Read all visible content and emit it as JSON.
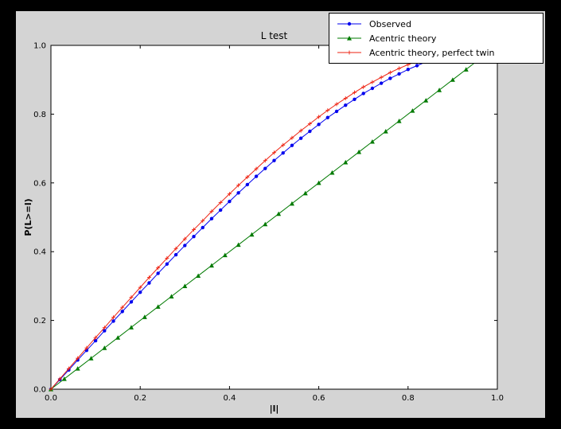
{
  "figure": {
    "outer_bg": "#000000",
    "face": "#d4d4d4",
    "axes_bg": "#ffffff",
    "border": "#000000"
  },
  "chart_data": {
    "type": "line",
    "title": "L test",
    "xlabel": "|l|",
    "ylabel": "P(L>=l)",
    "xlim": [
      0.0,
      1.0
    ],
    "ylim": [
      0.0,
      1.0
    ],
    "xticks": [
      "0.0",
      "0.2",
      "0.4",
      "0.6",
      "0.8",
      "1.0"
    ],
    "yticks": [
      "0.0",
      "0.2",
      "0.4",
      "0.6",
      "0.8",
      "1.0"
    ],
    "grid": false,
    "legend_position": "upper right",
    "series": [
      {
        "name": "Observed",
        "color": "#0000ee",
        "marker": "circle",
        "x": [
          0,
          0.02,
          0.04,
          0.06,
          0.08,
          0.1,
          0.12,
          0.14,
          0.16,
          0.18,
          0.2,
          0.22,
          0.24,
          0.26,
          0.28,
          0.3,
          0.32,
          0.34,
          0.36,
          0.38,
          0.4,
          0.42,
          0.44,
          0.46,
          0.48,
          0.5,
          0.52,
          0.54,
          0.56,
          0.58,
          0.6,
          0.62,
          0.64,
          0.66,
          0.68,
          0.7,
          0.72,
          0.74,
          0.76,
          0.78,
          0.8,
          0.82,
          0.84,
          0.86
        ],
        "y": [
          0,
          0.028,
          0.056,
          0.085,
          0.113,
          0.141,
          0.17,
          0.198,
          0.226,
          0.254,
          0.282,
          0.309,
          0.337,
          0.364,
          0.391,
          0.418,
          0.444,
          0.47,
          0.496,
          0.521,
          0.546,
          0.571,
          0.595,
          0.619,
          0.642,
          0.665,
          0.687,
          0.709,
          0.73,
          0.75,
          0.77,
          0.79,
          0.808,
          0.826,
          0.843,
          0.86,
          0.875,
          0.89,
          0.904,
          0.917,
          0.93,
          0.941,
          0.952,
          0.961
        ]
      },
      {
        "name": "Acentric theory",
        "color": "#007a00",
        "marker": "triangle",
        "x": [
          0,
          0.03,
          0.06,
          0.09,
          0.12,
          0.15,
          0.18,
          0.21,
          0.24,
          0.27,
          0.3,
          0.33,
          0.36,
          0.39,
          0.42,
          0.45,
          0.48,
          0.51,
          0.54,
          0.57,
          0.6,
          0.63,
          0.66,
          0.69,
          0.72,
          0.75,
          0.78,
          0.81,
          0.84,
          0.87,
          0.9,
          0.93,
          0.96
        ],
        "y": [
          0,
          0.03,
          0.06,
          0.09,
          0.12,
          0.15,
          0.18,
          0.21,
          0.24,
          0.27,
          0.3,
          0.33,
          0.36,
          0.39,
          0.42,
          0.45,
          0.48,
          0.51,
          0.54,
          0.57,
          0.6,
          0.63,
          0.66,
          0.69,
          0.72,
          0.75,
          0.78,
          0.81,
          0.84,
          0.87,
          0.9,
          0.93,
          0.96
        ]
      },
      {
        "name": "Acentric theory, perfect twin",
        "color": "#ee2211",
        "marker": "plus",
        "x": [
          0,
          0.02,
          0.04,
          0.06,
          0.08,
          0.1,
          0.12,
          0.14,
          0.16,
          0.18,
          0.2,
          0.22,
          0.24,
          0.26,
          0.28,
          0.3,
          0.32,
          0.34,
          0.36,
          0.38,
          0.4,
          0.42,
          0.44,
          0.46,
          0.48,
          0.5,
          0.52,
          0.54,
          0.56,
          0.58,
          0.6,
          0.62,
          0.64,
          0.66,
          0.68,
          0.7,
          0.72,
          0.74,
          0.76,
          0.78,
          0.8,
          0.82,
          0.84,
          0.86
        ],
        "y": [
          0,
          0.03,
          0.06,
          0.09,
          0.12,
          0.15,
          0.179,
          0.209,
          0.238,
          0.267,
          0.296,
          0.325,
          0.353,
          0.381,
          0.409,
          0.437,
          0.464,
          0.49,
          0.517,
          0.543,
          0.568,
          0.593,
          0.617,
          0.641,
          0.665,
          0.688,
          0.71,
          0.731,
          0.752,
          0.772,
          0.792,
          0.811,
          0.829,
          0.846,
          0.863,
          0.879,
          0.893,
          0.907,
          0.921,
          0.933,
          0.944,
          0.954,
          0.964,
          0.972
        ]
      }
    ]
  }
}
